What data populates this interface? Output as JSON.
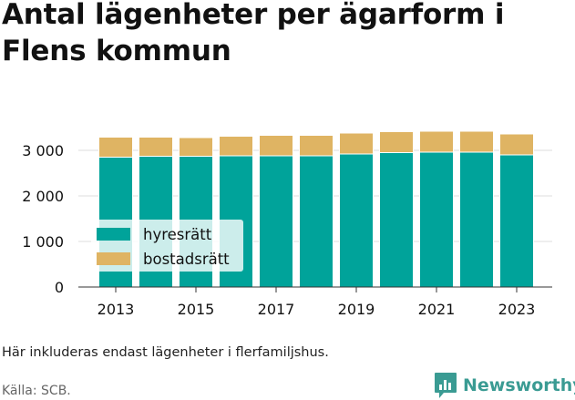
{
  "title": "Antal lägenheter per ägarform i Flens kommun",
  "note": "Här inkluderas endast lägenheter i flerfamiljshus.",
  "source": "Källa: SCB.",
  "brand": {
    "name": "Newsworthy",
    "icon": "newsworthy-bar-chart-icon",
    "color": "#3a9b93"
  },
  "colors": {
    "hyresratt": "#00a39a",
    "bostadsratt": "#dfb463",
    "grid": "#dddddd"
  },
  "chart_data": {
    "type": "bar",
    "stacked": true,
    "categories": [
      "2013",
      "2014",
      "2015",
      "2016",
      "2017",
      "2018",
      "2019",
      "2020",
      "2021",
      "2022",
      "2023"
    ],
    "x_tick_labels": [
      "2013",
      "2015",
      "2017",
      "2019",
      "2021",
      "2023"
    ],
    "series": [
      {
        "name": "hyresrätt",
        "color": "#00a39a",
        "values": [
          2850,
          2870,
          2870,
          2880,
          2880,
          2880,
          2920,
          2950,
          2960,
          2960,
          2900
        ]
      },
      {
        "name": "bostadsrätt",
        "color": "#dfb463",
        "values": [
          440,
          420,
          410,
          430,
          450,
          450,
          460,
          460,
          460,
          460,
          460
        ]
      }
    ],
    "ylim": [
      0,
      3500
    ],
    "y_ticks": [
      0,
      1000,
      2000,
      3000
    ],
    "y_tick_labels": [
      "0",
      "1 000",
      "2 000",
      "3 000"
    ],
    "grid": true,
    "legend_position": "lower-left"
  }
}
